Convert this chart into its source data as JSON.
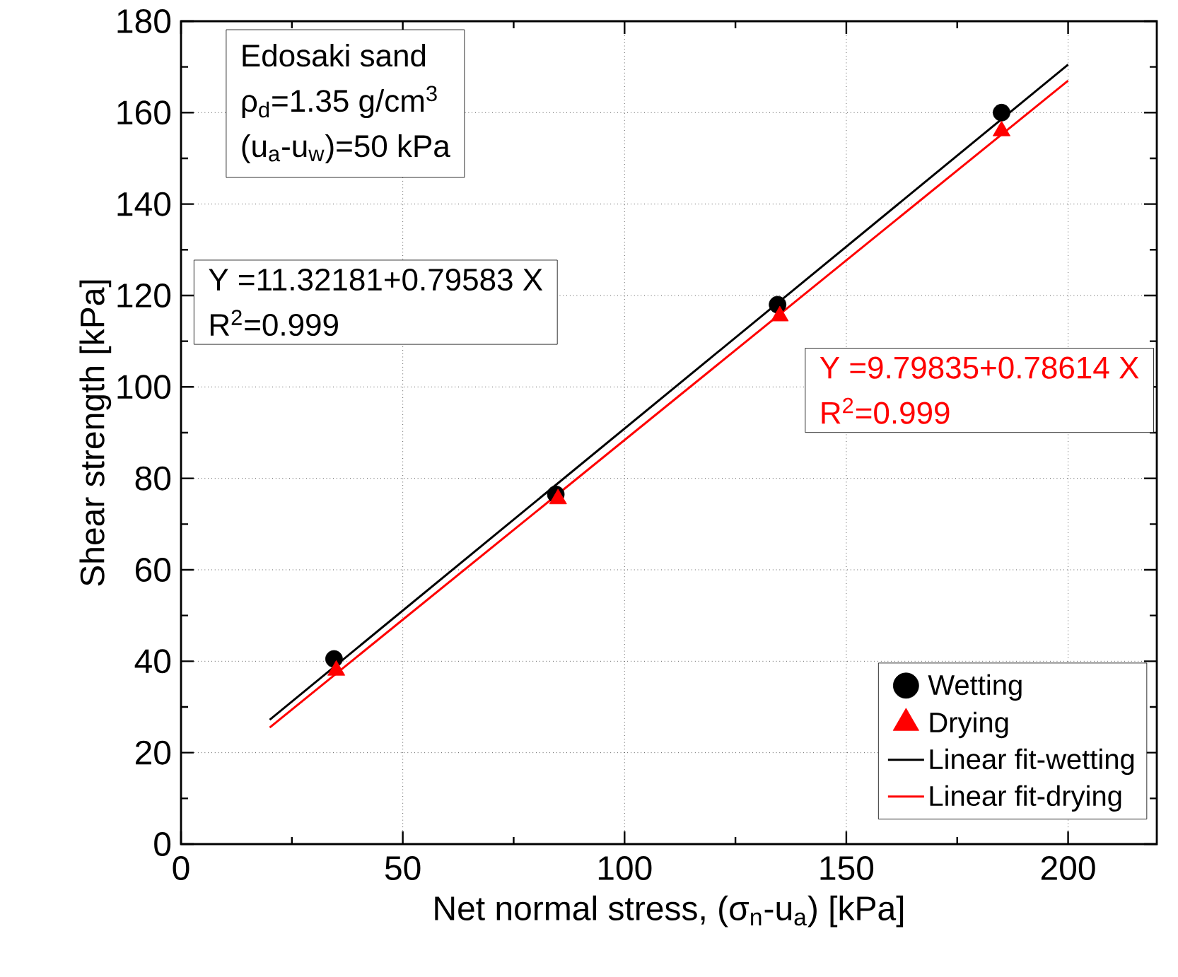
{
  "chart_data": {
    "type": "scatter",
    "xlabel": "Net normal stress, (σ$_{n}$-u$_{a}$) [kPa]",
    "ylabel": "Shear strength [kPa]",
    "xlim": [
      0,
      220
    ],
    "xticks": [
      0,
      50,
      100,
      150,
      200
    ],
    "ylim": [
      0,
      180
    ],
    "yticks": [
      0,
      20,
      40,
      60,
      80,
      100,
      120,
      140,
      160,
      180
    ],
    "grid": true,
    "legend": "bottom right",
    "annotations": [
      "Edosaki sand",
      "ρ$_{d}$=1.35 g/cm$^{3}$",
      "(u$_{a}$-u$_{w}$)=50 kPa",
      "Y =11.32181+0.79583 X",
      "R$^{2}$=0.999",
      "Y =9.79835+0.78614 X",
      "R$^{2}$=0.999"
    ],
    "series": [
      {
        "name": "Wetting",
        "marker": "circle",
        "color": "#000000",
        "x": [
          34.5,
          84.5,
          134.5,
          185
        ],
        "values": [
          40.5,
          76.5,
          118,
          160
        ]
      },
      {
        "name": "Drying",
        "marker": "triangle",
        "color": "#ff0000",
        "x": [
          35,
          85,
          135,
          185
        ],
        "values": [
          38,
          75.5,
          115.5,
          156
        ]
      },
      {
        "name": "Linear fit-wetting",
        "type": "line",
        "marker": "none",
        "line_style": "solid",
        "color": "#000000",
        "x": [
          20,
          200
        ],
        "values": [
          27.2,
          170.5
        ]
      },
      {
        "name": "Linear fit-drying",
        "type": "line",
        "marker": "none",
        "line_style": "solid",
        "color": "#ff0000",
        "x": [
          20,
          200
        ],
        "values": [
          25.5,
          167.0
        ]
      }
    ]
  }
}
